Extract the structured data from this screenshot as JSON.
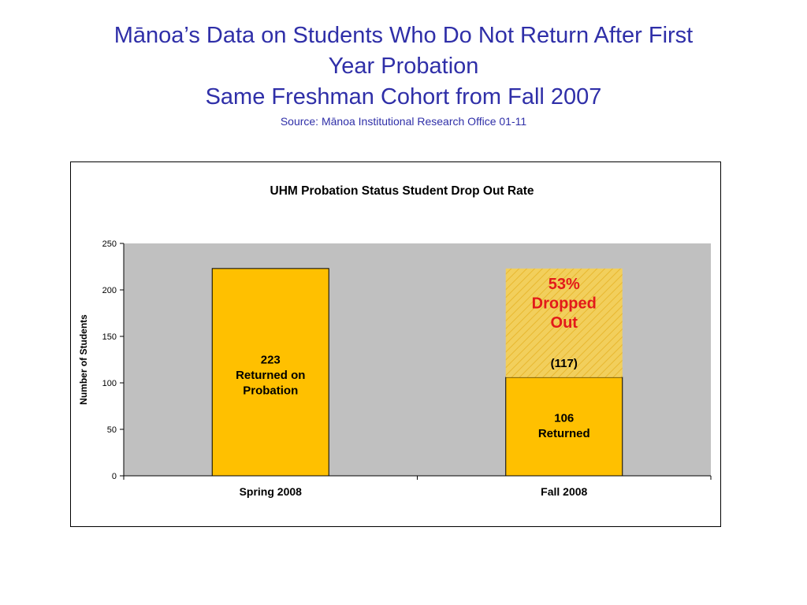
{
  "header": {
    "title_line1": "Mānoa’s Data on Students Who Do Not Return After First",
    "title_line2": "Year Probation",
    "title_line3": "Same Freshman Cohort from Fall 2007",
    "source": "Source: Mānoa Institutional Research Office 01-11"
  },
  "colors": {
    "title_blue": "#2f2fa8",
    "bar_fill": "#ffc000",
    "hatch_fill": "#f2cf5c",
    "plot_bg": "#c0c0c0",
    "drop_text": "#e31a1a"
  },
  "chart_data": {
    "type": "bar",
    "title": "UHM Probation Status Student Drop Out Rate",
    "ylabel": "Number of Students",
    "xlabel": "",
    "ylim": [
      0,
      250
    ],
    "yticks": [
      0,
      50,
      100,
      150,
      200,
      250
    ],
    "grid": false,
    "categories": [
      "Spring 2008",
      "Fall 2008"
    ],
    "series": [
      {
        "values": [
          223,
          106
        ]
      },
      {
        "values": [
          0,
          117
        ]
      }
    ],
    "annotations": {
      "spring_bar": [
        "223",
        "Returned on",
        "Probation"
      ],
      "fall_returned": [
        "106",
        "Returned"
      ],
      "fall_dropped_count": "(117)",
      "fall_dropped_pct": [
        "53%",
        "Dropped",
        "Out"
      ]
    }
  }
}
